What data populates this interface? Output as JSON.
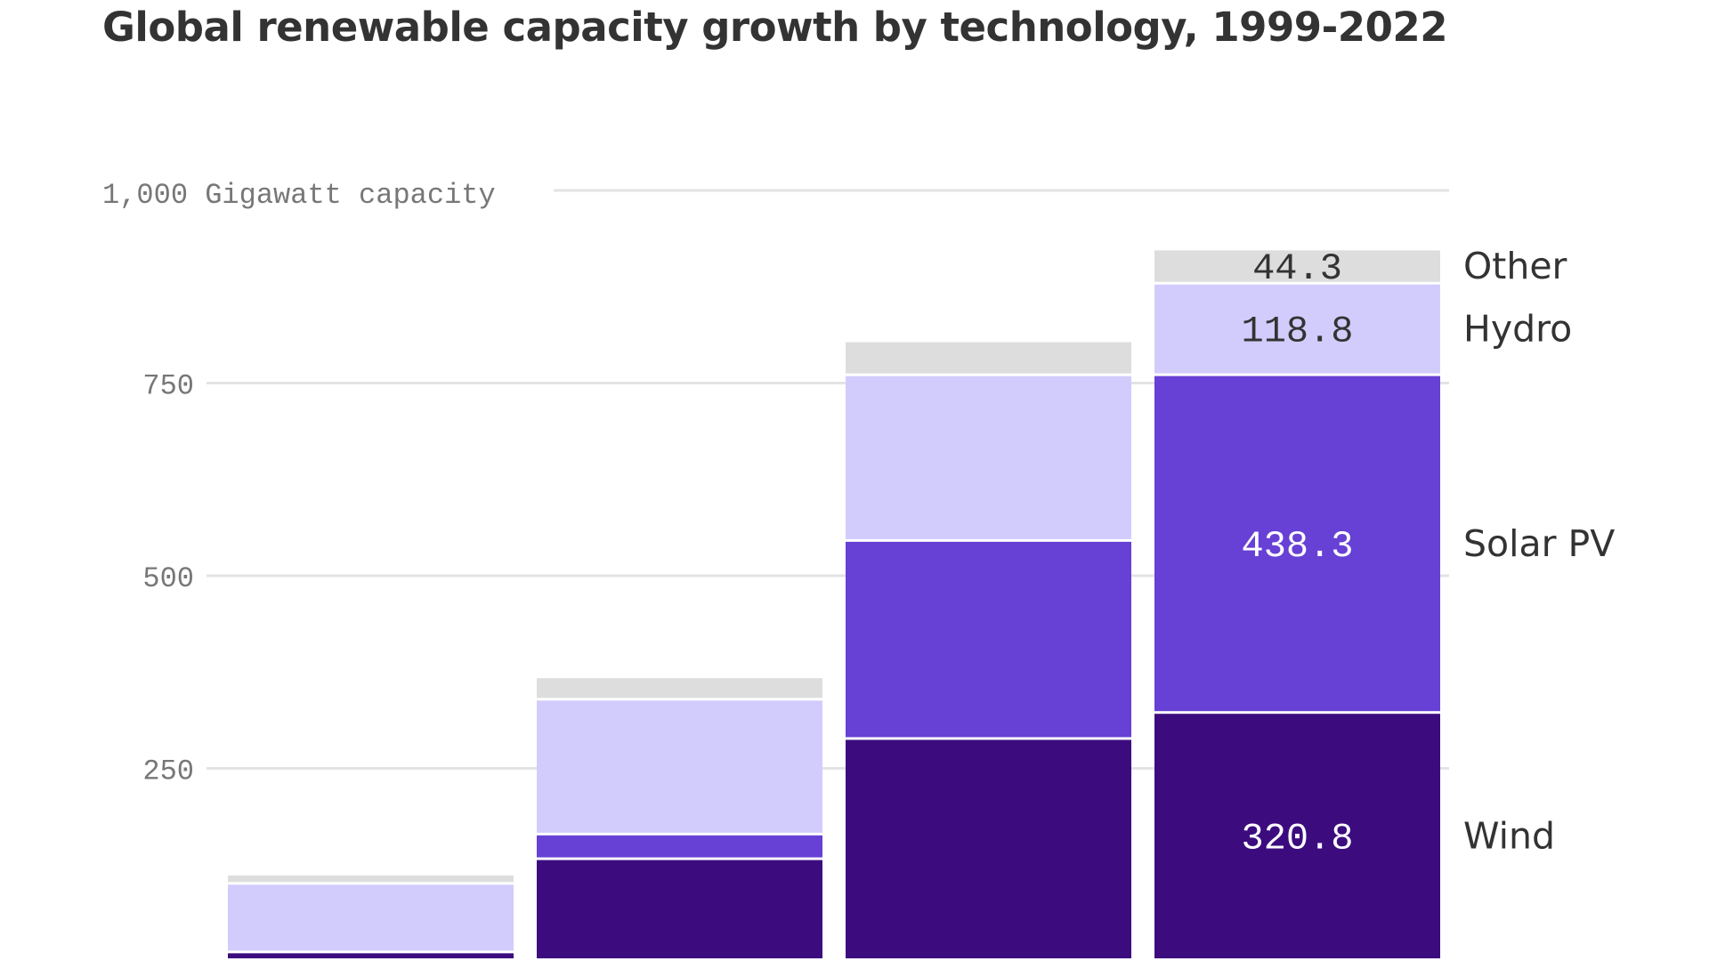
{
  "chart_data": {
    "type": "bar",
    "stacked": true,
    "title": "Global renewable capacity growth by technology, 1999-2022",
    "ylabel": "Gigawatt capacity",
    "ylim": [
      0,
      1000
    ],
    "yticks": [
      {
        "value": 250,
        "label": "250"
      },
      {
        "value": 500,
        "label": "500"
      },
      {
        "value": 750,
        "label": "750"
      },
      {
        "value": 1000,
        "label": "1,000"
      }
    ],
    "grid": true,
    "legend_placement": "right of last bar",
    "categories": [
      "",
      "",
      "",
      ""
    ],
    "series": [
      {
        "name": "Wind",
        "color": "#3c0c7f",
        "label_color": "#ffffff",
        "values": [
          10,
          131,
          287,
          320.8
        ],
        "labels": [
          "",
          "",
          "",
          "320.8"
        ]
      },
      {
        "name": "Solar PV",
        "color": "#6740d5",
        "label_color": "#ffffff",
        "values": [
          0,
          32,
          257,
          438.3
        ],
        "labels": [
          "",
          "",
          "",
          "438.3"
        ]
      },
      {
        "name": "Hydro",
        "color": "#d2ccfd",
        "label_color": "#333333",
        "values": [
          89,
          175,
          215,
          118.8
        ],
        "labels": [
          "",
          "",
          "",
          "118.8"
        ]
      },
      {
        "name": "Other",
        "color": "#dddddd",
        "label_color": "#333333",
        "values": [
          12,
          29,
          44,
          44.3
        ],
        "labels": [
          "",
          "",
          "",
          "44.3"
        ]
      }
    ]
  }
}
